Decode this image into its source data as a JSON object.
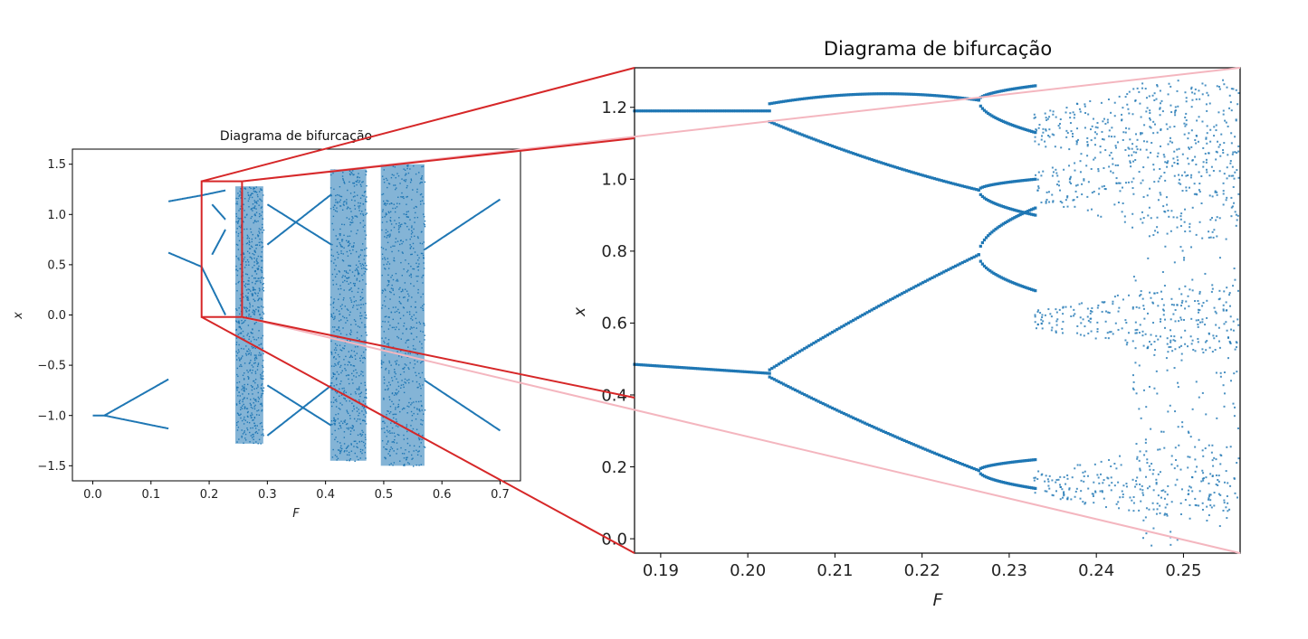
{
  "chart_data": [
    {
      "id": "overview",
      "type": "scatter",
      "title": "Diagrama de bifurcação",
      "xlabel": "F",
      "ylabel": "x",
      "xlim": [
        -0.035,
        0.735
      ],
      "ylim": [
        -1.65,
        1.65
      ],
      "xticks": [
        0.0,
        0.1,
        0.2,
        0.3,
        0.4,
        0.5,
        0.6,
        0.7
      ],
      "xtick_labels": [
        "0.0",
        "0.1",
        "0.2",
        "0.3",
        "0.4",
        "0.5",
        "0.6",
        "0.7"
      ],
      "yticks": [
        1.5,
        1.0,
        0.5,
        0.0,
        -0.5,
        -1.0,
        -1.5
      ],
      "ytick_labels": [
        "1.5",
        "1.0",
        "0.5",
        "0.0",
        "−0.5",
        "−1.0",
        "−1.5"
      ],
      "grid": false,
      "marker_color": "#1f77b4",
      "inset_region": {
        "x": [
          0.187,
          0.2565
        ],
        "y": [
          -0.02,
          1.33
        ]
      },
      "inset_color": "#d62728",
      "branches": [
        {
          "x0": 0.0,
          "x1": 0.025,
          "y0": -1.0,
          "y1": -1.0
        },
        {
          "x0": 0.02,
          "x1": 0.13,
          "y0": -1.0,
          "y1": -0.64
        },
        {
          "x0": 0.02,
          "x1": 0.13,
          "y0": -1.0,
          "y1": -1.13
        },
        {
          "x0": 0.13,
          "x1": 0.187,
          "y0": 1.13,
          "y1": 1.19
        },
        {
          "x0": 0.13,
          "x1": 0.187,
          "y0": 0.62,
          "y1": 0.48
        },
        {
          "x0": 0.187,
          "x1": 0.228,
          "y0": 1.19,
          "y1": 1.24
        },
        {
          "x0": 0.187,
          "x1": 0.228,
          "y0": 0.48,
          "y1": 0.0
        },
        {
          "x0": 0.205,
          "x1": 0.228,
          "y0": 0.6,
          "y1": 0.85
        },
        {
          "x0": 0.205,
          "x1": 0.228,
          "y0": 1.1,
          "y1": 0.95
        },
        {
          "x0": 0.3,
          "x1": 0.41,
          "y0": 1.1,
          "y1": 0.7
        },
        {
          "x0": 0.3,
          "x1": 0.41,
          "y0": 0.7,
          "y1": 1.2
        },
        {
          "x0": 0.3,
          "x1": 0.41,
          "y0": -0.7,
          "y1": -1.1
        },
        {
          "x0": 0.3,
          "x1": 0.41,
          "y0": -1.2,
          "y1": -0.7
        },
        {
          "x0": 0.57,
          "x1": 0.7,
          "y0": 0.65,
          "y1": 1.15
        },
        {
          "x0": 0.57,
          "x1": 0.7,
          "y0": -0.65,
          "y1": -1.15
        }
      ],
      "chaotic_bands": [
        {
          "x": [
            0.245,
            0.293
          ],
          "y": [
            -1.28,
            1.28
          ]
        },
        {
          "x": [
            0.408,
            0.47
          ],
          "y": [
            -1.45,
            1.45
          ]
        },
        {
          "x": [
            0.495,
            0.57
          ],
          "y": [
            -1.5,
            1.5
          ]
        }
      ]
    },
    {
      "id": "zoom",
      "type": "scatter",
      "title": "Diagrama de bifurcação",
      "xlabel": "F",
      "ylabel": "x",
      "xlim": [
        0.187,
        0.2565
      ],
      "ylim": [
        -0.04,
        1.31
      ],
      "xticks": [
        0.19,
        0.2,
        0.21,
        0.22,
        0.23,
        0.24,
        0.25
      ],
      "xtick_labels": [
        "0.19",
        "0.20",
        "0.21",
        "0.22",
        "0.23",
        "0.24",
        "0.25"
      ],
      "yticks": [
        1.2,
        1.0,
        0.8,
        0.6,
        0.4,
        0.2,
        0.0
      ],
      "ytick_labels": [
        "1.2",
        "1.0",
        "0.8",
        "0.6",
        "0.4",
        "0.2",
        "0.0"
      ],
      "grid": false,
      "marker_color": "#1f77b4",
      "connector_color_dark": "#d62728",
      "connector_color_light": "#f4b6bf",
      "period1": [
        {
          "F": 0.187,
          "x": 1.19
        },
        {
          "F": 0.2025,
          "x": 1.19
        },
        {
          "F": 0.187,
          "x": 0.485
        },
        {
          "F": 0.2025,
          "x": 0.46
        }
      ],
      "period2_upper": {
        "F": [
          0.2025,
          0.2265
        ],
        "top": [
          1.21,
          1.26,
          1.22
        ],
        "bottom": [
          1.16,
          1.04,
          0.97
        ]
      },
      "period2_lower": {
        "F": [
          0.2025,
          0.2265
        ],
        "top": [
          0.47,
          0.65,
          0.79
        ],
        "bottom": [
          0.45,
          0.3,
          0.19
        ]
      },
      "period4": [
        {
          "F": [
            0.2265,
            0.233
          ],
          "from": 1.22,
          "to": [
            1.26,
            1.13
          ]
        },
        {
          "F": [
            0.2265,
            0.233
          ],
          "from": 0.97,
          "to": [
            1.0,
            0.9
          ]
        },
        {
          "F": [
            0.2265,
            0.233
          ],
          "from": 0.79,
          "to": [
            0.92,
            0.69
          ]
        },
        {
          "F": [
            0.2265,
            0.233
          ],
          "from": 0.19,
          "to": [
            0.22,
            0.14
          ]
        }
      ],
      "chaos_start": 0.233
    }
  ]
}
